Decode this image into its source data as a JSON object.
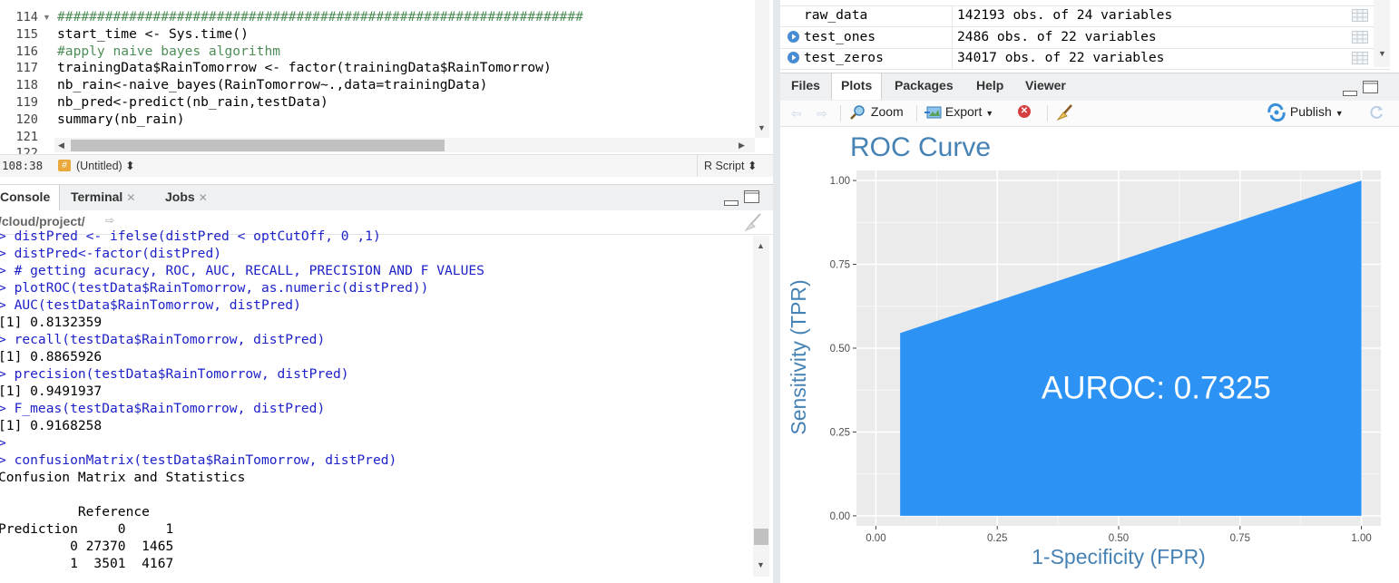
{
  "editor": {
    "lines": [
      {
        "num": "114",
        "text": "##################################################################",
        "type": "comment",
        "fold": true
      },
      {
        "num": "115",
        "text": "start_time <- Sys.time()",
        "type": "code"
      },
      {
        "num": "116",
        "text": "#apply naive bayes algorithm",
        "type": "comment"
      },
      {
        "num": "117",
        "text": "trainingData$RainTomorrow <- factor(trainingData$RainTomorrow)",
        "type": "code"
      },
      {
        "num": "118",
        "text": "nb_rain<-naive_bayes(RainTomorrow~.,data=trainingData)",
        "type": "code"
      },
      {
        "num": "119",
        "text": "nb_pred<-predict(nb_rain,testData)",
        "type": "code"
      },
      {
        "num": "120",
        "text": "summary(nb_rain)",
        "type": "code"
      },
      {
        "num": "121",
        "text": "",
        "type": "code"
      },
      {
        "num": "122",
        "text": "",
        "type": "code"
      }
    ],
    "status": {
      "position": "108:38",
      "scope": "(Untitled)",
      "file_type": "R Script"
    }
  },
  "console": {
    "tabs": [
      {
        "label": "Console",
        "closable": false
      },
      {
        "label": "Terminal",
        "closable": true
      },
      {
        "label": "Jobs",
        "closable": true
      }
    ],
    "path": "/cloud/project/",
    "lines": [
      {
        "text": "> distPred <- ifelse(distPred < optCutOff, 0 ,1)",
        "kind": "in"
      },
      {
        "text": "> distPred<-factor(distPred)",
        "kind": "in"
      },
      {
        "text": "> # getting acuracy, ROC, AUC, RECALL, PRECISION AND F VALUES",
        "kind": "in"
      },
      {
        "text": "> plotROC(testData$RainTomorrow, as.numeric(distPred))",
        "kind": "in"
      },
      {
        "text": "> AUC(testData$RainTomorrow, distPred)",
        "kind": "in"
      },
      {
        "text": "[1] 0.8132359",
        "kind": "out"
      },
      {
        "text": "> recall(testData$RainTomorrow, distPred)",
        "kind": "in"
      },
      {
        "text": "[1] 0.8865926",
        "kind": "out"
      },
      {
        "text": "> precision(testData$RainTomorrow, distPred)",
        "kind": "in"
      },
      {
        "text": "[1] 0.9491937",
        "kind": "out"
      },
      {
        "text": "> F_meas(testData$RainTomorrow, distPred)",
        "kind": "in"
      },
      {
        "text": "[1] 0.9168258",
        "kind": "out"
      },
      {
        "text": ">",
        "kind": "in"
      },
      {
        "text": "> confusionMatrix(testData$RainTomorrow, distPred)",
        "kind": "in"
      },
      {
        "text": "Confusion Matrix and Statistics",
        "kind": "out"
      },
      {
        "text": "",
        "kind": "out"
      },
      {
        "text": "          Reference",
        "kind": "out"
      },
      {
        "text": "Prediction     0     1",
        "kind": "out"
      },
      {
        "text": "         0 27370  1465",
        "kind": "out"
      },
      {
        "text": "         1  3501  4167",
        "kind": "out"
      }
    ]
  },
  "environment": {
    "rows": [
      {
        "name": "raw_data",
        "value": "142193 obs. of 24 variables",
        "expandable": false
      },
      {
        "name": "test_ones",
        "value": "2486 obs. of 22 variables",
        "expandable": true
      },
      {
        "name": "test_zeros",
        "value": "34017 obs. of 22 variables",
        "expandable": true
      }
    ]
  },
  "plots_pane": {
    "tabs": [
      {
        "label": "Files"
      },
      {
        "label": "Plots",
        "active": true
      },
      {
        "label": "Packages"
      },
      {
        "label": "Help"
      },
      {
        "label": "Viewer"
      }
    ],
    "toolbar": {
      "zoom": "Zoom",
      "export": "Export",
      "publish": "Publish"
    }
  },
  "chart_data": {
    "type": "area",
    "title": "ROC Curve",
    "xlabel": "1-Specificity (FPR)",
    "ylabel": "Sensitivity (TPR)",
    "x": [
      0.05,
      1.0
    ],
    "y": [
      0.545,
      1.0
    ],
    "xlim": [
      -0.04,
      1.04
    ],
    "ylim": [
      -0.03,
      1.03
    ],
    "x_ticks": [
      "0.00",
      "0.25",
      "0.50",
      "0.75",
      "1.00"
    ],
    "y_ticks": [
      "0.00",
      "0.25",
      "0.50",
      "0.75",
      "1.00"
    ],
    "x_tick_values": [
      0,
      0.25,
      0.5,
      0.75,
      1
    ],
    "y_tick_values": [
      0,
      0.25,
      0.5,
      0.75,
      1
    ],
    "annotation": "AUROC: 0.7325",
    "fill_color": "#2c93f5",
    "panel_color": "#ebebeb",
    "title_color": "#4682b4",
    "grid": true
  }
}
